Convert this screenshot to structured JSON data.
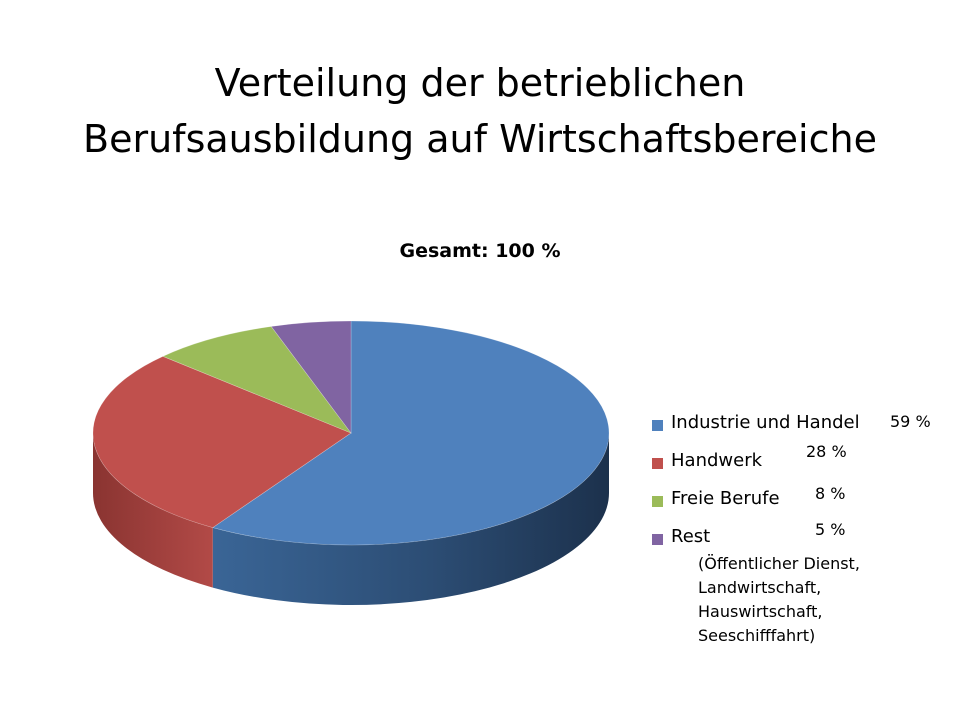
{
  "slide": {
    "title_line1": "Verteilung der betrieblichen",
    "title_line2": "Berufsausbildung  auf Wirtschaftsbereiche"
  },
  "chart_data": {
    "type": "pie",
    "style": "3d",
    "title": "Gesamt: 100 %",
    "categories": [
      "Industrie und Handel",
      "Handwerk",
      "Freie Berufe",
      "Rest"
    ],
    "values": [
      59,
      28,
      8,
      5
    ],
    "value_labels": [
      "59 %",
      "28 %",
      "8 %",
      "5 %"
    ],
    "colors": [
      "#4f81bd",
      "#c0504d",
      "#9bbb59",
      "#8064a2"
    ],
    "legend_placement": "right",
    "legend_note": [
      "(Öffentlicher Dienst,",
      "Landwirtschaft,",
      "Hauswirtschaft,",
      "Seeschifffahrt)"
    ]
  }
}
